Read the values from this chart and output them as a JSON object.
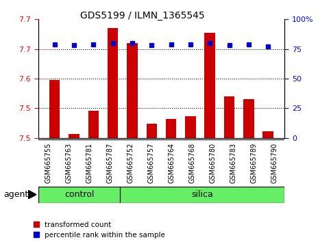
{
  "title": "GDS5199 / ILMN_1365545",
  "samples": [
    "GSM665755",
    "GSM665763",
    "GSM665781",
    "GSM665787",
    "GSM665752",
    "GSM665757",
    "GSM665764",
    "GSM665768",
    "GSM665780",
    "GSM665783",
    "GSM665789",
    "GSM665790"
  ],
  "groups": [
    "control",
    "control",
    "control",
    "control",
    "silica",
    "silica",
    "silica",
    "silica",
    "silica",
    "silica",
    "silica",
    "silica"
  ],
  "red_values": [
    7.598,
    7.507,
    7.546,
    7.685,
    7.66,
    7.524,
    7.532,
    7.537,
    7.677,
    7.57,
    7.566,
    7.511
  ],
  "blue_values": [
    79,
    78,
    79,
    80,
    80,
    78,
    79,
    79,
    80,
    78,
    79,
    77
  ],
  "ylim_left": [
    7.5,
    7.7
  ],
  "ylim_right": [
    0,
    100
  ],
  "yticks_left": [
    7.5,
    7.55,
    7.6,
    7.65,
    7.7
  ],
  "yticks_right": [
    0,
    25,
    50,
    75,
    100
  ],
  "grid_values": [
    7.55,
    7.6,
    7.65
  ],
  "bar_color": "#cc0000",
  "dot_color": "#0000cc",
  "bg_color": "#c8c8c8",
  "group_bar_color": "#66ee66",
  "agent_label": "agent",
  "legend_red": "transformed count",
  "legend_blue": "percentile rank within the sample",
  "control_label": "control",
  "silica_label": "silica",
  "n_control": 4,
  "n_silica": 8
}
